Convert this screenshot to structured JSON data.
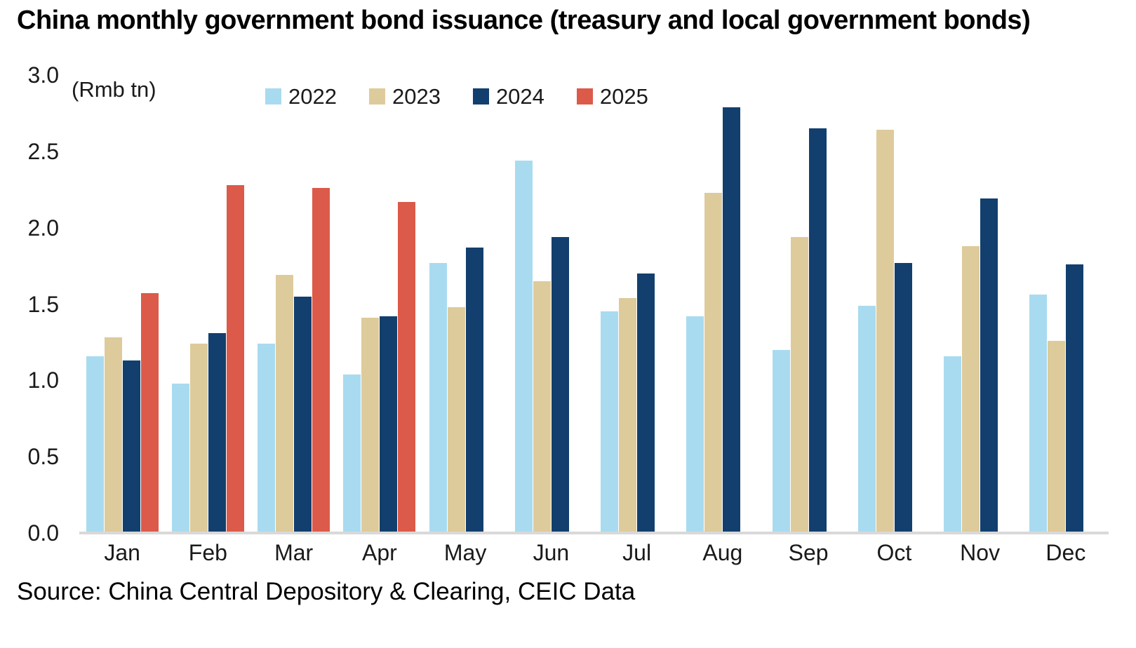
{
  "title": "China monthly government bond issuance (treasury and local government bonds)",
  "unit_label": "(Rmb tn)",
  "source": "Source: China Central Depository & Clearing, CEIC Data",
  "colors": {
    "series_2022": "#A9DBF0",
    "series_2023": "#DECB9C",
    "series_2024": "#123F6E",
    "series_2025": "#DC5A49",
    "axis_line": "#D9D9D9",
    "text": "#000000"
  },
  "chart_data": {
    "type": "bar",
    "title": "China monthly government bond issuance (treasury and local government bonds)",
    "xlabel": "",
    "ylabel": "(Rmb tn)",
    "ylim": [
      0.0,
      3.0
    ],
    "ytick_labels": [
      "3.0",
      "2.5",
      "2.0",
      "1.5",
      "1.0",
      "0.5",
      "0.0"
    ],
    "grid": false,
    "legend_position": "top",
    "categories": [
      "Jan",
      "Feb",
      "Mar",
      "Apr",
      "May",
      "Jun",
      "Jul",
      "Aug",
      "Sep",
      "Oct",
      "Nov",
      "Dec"
    ],
    "series": [
      {
        "name": "2022",
        "color": "#A9DBF0",
        "values": [
          1.16,
          0.98,
          1.24,
          1.04,
          1.77,
          2.44,
          1.45,
          1.42,
          1.2,
          1.49,
          1.16,
          1.56
        ]
      },
      {
        "name": "2023",
        "color": "#DECB9C",
        "values": [
          1.28,
          1.24,
          1.69,
          1.41,
          1.48,
          1.65,
          1.54,
          2.23,
          1.94,
          2.64,
          1.88,
          1.26
        ]
      },
      {
        "name": "2024",
        "color": "#123F6E",
        "values": [
          1.13,
          1.31,
          1.55,
          1.42,
          1.87,
          1.94,
          1.7,
          2.79,
          2.65,
          1.77,
          2.19,
          1.76
        ]
      },
      {
        "name": "2025",
        "color": "#DC5A49",
        "values": [
          1.57,
          2.28,
          2.26,
          2.17,
          null,
          null,
          null,
          null,
          null,
          null,
          null,
          null
        ]
      }
    ]
  }
}
